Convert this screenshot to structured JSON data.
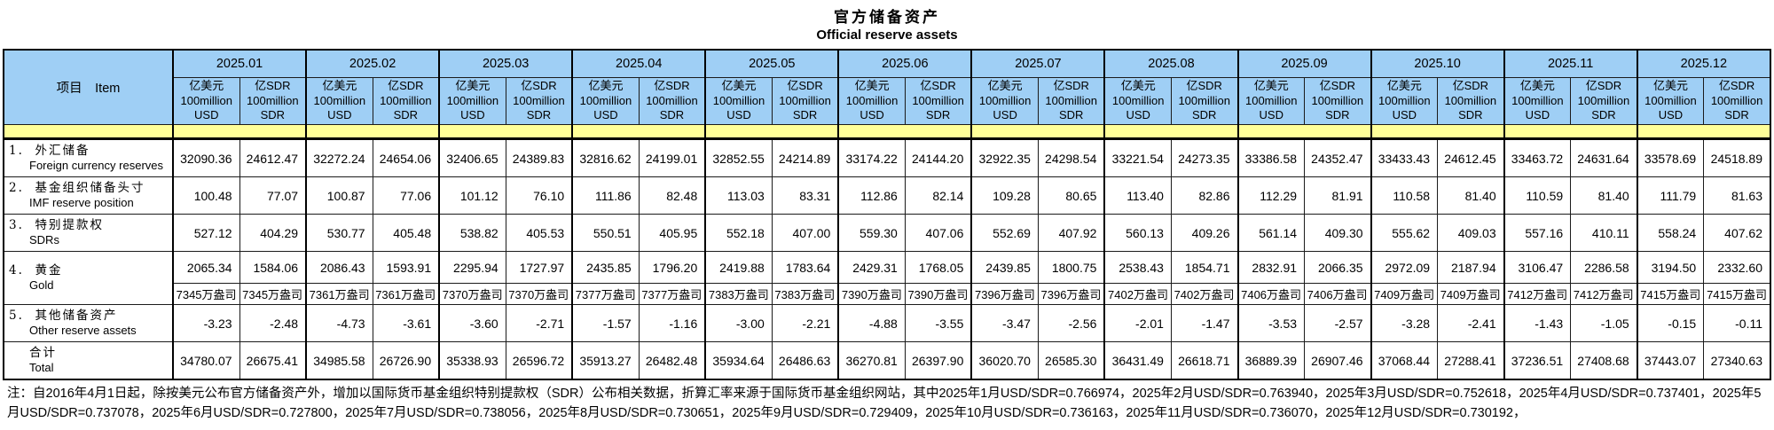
{
  "title": {
    "zh": "官方储备资产",
    "en": "Official reserve assets"
  },
  "table": {
    "item_header": "项目　Item",
    "unit_usd": {
      "zh": "亿美元",
      "line2": "100million",
      "line3": "USD"
    },
    "unit_sdr": {
      "zh": "亿SDR",
      "line2": "100million",
      "line3": "SDR"
    },
    "months": [
      "2025.01",
      "2025.02",
      "2025.03",
      "2025.04",
      "2025.05",
      "2025.06",
      "2025.07",
      "2025.08",
      "2025.09",
      "2025.10",
      "2025.11",
      "2025.12"
    ],
    "rows": [
      {
        "id": "fx",
        "label_zh": "1.  外汇储备",
        "label_en": "Foreign currency reserves",
        "usd": [
          "32090.36",
          "32272.24",
          "32406.65",
          "32816.62",
          "32852.55",
          "33174.22",
          "32922.35",
          "33221.54",
          "33386.58",
          "33433.43",
          "33463.72",
          "33578.69"
        ],
        "sdr": [
          "24612.47",
          "24654.06",
          "24389.83",
          "24199.01",
          "24214.89",
          "24144.20",
          "24298.54",
          "24273.35",
          "24352.47",
          "24612.45",
          "24631.64",
          "24518.89"
        ]
      },
      {
        "id": "imf",
        "label_zh": "2.  基金组织储备头寸",
        "label_en": "IMF reserve position",
        "usd": [
          "100.48",
          "100.87",
          "101.12",
          "111.86",
          "113.03",
          "112.86",
          "109.28",
          "113.40",
          "112.29",
          "110.58",
          "110.59",
          "111.79"
        ],
        "sdr": [
          "77.07",
          "77.06",
          "76.10",
          "82.48",
          "83.31",
          "82.14",
          "80.65",
          "82.86",
          "81.91",
          "81.40",
          "81.40",
          "81.63"
        ]
      },
      {
        "id": "sdrs",
        "label_zh": "3.  特别提款权",
        "label_en": "SDRs",
        "usd": [
          "527.12",
          "530.77",
          "538.82",
          "550.51",
          "552.18",
          "559.30",
          "552.69",
          "560.13",
          "561.14",
          "555.62",
          "557.16",
          "558.24"
        ],
        "sdr": [
          "404.29",
          "405.48",
          "405.53",
          "405.95",
          "407.00",
          "407.06",
          "407.92",
          "409.26",
          "409.30",
          "409.03",
          "410.11",
          "407.62"
        ]
      },
      {
        "id": "gold",
        "label_zh": "4.  黄金",
        "label_en": "Gold",
        "usd": [
          "2065.34",
          "2086.43",
          "2295.94",
          "2435.85",
          "2419.88",
          "2429.31",
          "2439.85",
          "2538.43",
          "2832.91",
          "2972.09",
          "3106.47",
          "3194.50"
        ],
        "sdr": [
          "1584.06",
          "1593.91",
          "1727.97",
          "1796.20",
          "1783.64",
          "1768.05",
          "1800.75",
          "1854.71",
          "2066.35",
          "2187.94",
          "2286.58",
          "2332.60"
        ]
      },
      {
        "id": "gold_oz",
        "label_zh": "",
        "label_en": "",
        "usd": [
          "7345万盎司",
          "7361万盎司",
          "7370万盎司",
          "7377万盎司",
          "7383万盎司",
          "7390万盎司",
          "7396万盎司",
          "7402万盎司",
          "7406万盎司",
          "7409万盎司",
          "7412万盎司",
          "7415万盎司"
        ],
        "sdr": [
          "7345万盎司",
          "7361万盎司",
          "7370万盎司",
          "7377万盎司",
          "7383万盎司",
          "7390万盎司",
          "7396万盎司",
          "7402万盎司",
          "7406万盎司",
          "7409万盎司",
          "7412万盎司",
          "7415万盎司"
        ]
      },
      {
        "id": "other",
        "label_zh": "5.  其他储备资产",
        "label_en": "Other reserve assets",
        "usd": [
          "-3.23",
          "-4.73",
          "-3.60",
          "-1.57",
          "-3.00",
          "-4.88",
          "-3.47",
          "-2.01",
          "-3.53",
          "-3.28",
          "-1.43",
          "-0.15"
        ],
        "sdr": [
          "-2.48",
          "-3.61",
          "-2.71",
          "-1.16",
          "-2.21",
          "-3.55",
          "-2.56",
          "-1.47",
          "-2.57",
          "-2.41",
          "-1.05",
          "-0.11"
        ]
      },
      {
        "id": "total",
        "label_zh": "合计",
        "label_en": "Total",
        "usd": [
          "34780.07",
          "34985.58",
          "35338.93",
          "35913.27",
          "35934.64",
          "36270.81",
          "36020.70",
          "36431.49",
          "36889.39",
          "37068.44",
          "37236.51",
          "37443.07"
        ],
        "sdr": [
          "26675.41",
          "26726.90",
          "26596.72",
          "26482.48",
          "26486.63",
          "26397.90",
          "26585.30",
          "26618.71",
          "26907.46",
          "27288.41",
          "27408.68",
          "27340.63"
        ]
      }
    ]
  },
  "colors": {
    "header_blue": "#9fcff5",
    "spacer_yellow": "#ffff99",
    "border": "#000000"
  },
  "note": "注：自2016年4月1日起，除按美元公布官方储备资产外，增加以国际货币基金组织特别提款权（SDR）公布相关数据，折算汇率来源于国际货币基金组织网站，其中2025年1月USD/SDR=0.766974，2025年2月USD/SDR=0.763940，2025年3月USD/SDR=0.752618，2025年4月USD/SDR=0.737401，2025年5月USD/SDR=0.737078，2025年6月USD/SDR=0.727800，2025年7月USD/SDR=0.738056，2025年8月USD/SDR=0.730651，2025年9月USD/SDR=0.729409，2025年10月USD/SDR=0.736163，2025年11月USD/SDR=0.736070，2025年12月USD/SDR=0.730192，"
}
